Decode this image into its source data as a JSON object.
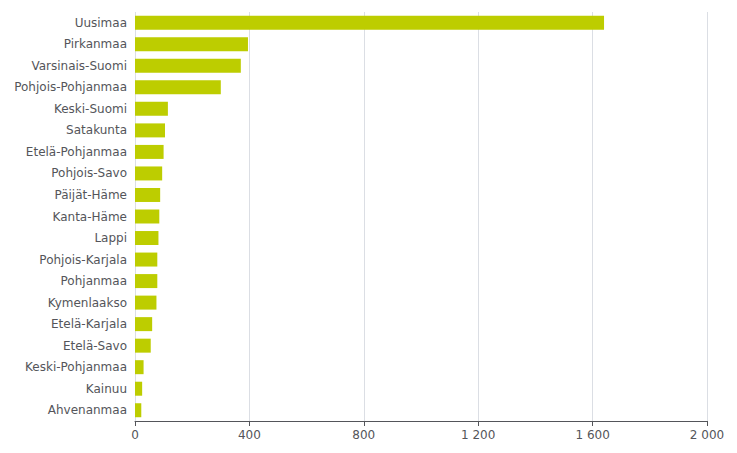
{
  "chart_data": {
    "type": "bar",
    "orientation": "horizontal",
    "categories": [
      "Ahvenanmaa",
      "Kainuu",
      "Keski-Pohjanmaa",
      "Etelä-Savo",
      "Etelä-Karjala",
      "Kymenlaakso",
      "Pohjanmaa",
      "Pohjois-Karjala",
      "Lappi",
      "Kanta-Häme",
      "Päijät-Häme",
      "Pohjois-Savo",
      "Etelä-Pohjanmaa",
      "Satakunta",
      "Keski-Suomi",
      "Pohjois-Pohjanmaa",
      "Varsinais-Suomi",
      "Pirkanmaa",
      "Uusimaa"
    ],
    "values": [
      22,
      25,
      30,
      55,
      60,
      75,
      78,
      78,
      82,
      85,
      88,
      95,
      100,
      105,
      115,
      300,
      370,
      395,
      1640
    ],
    "color": "#bdcd00",
    "xlim": [
      0,
      2000
    ],
    "xticks": [
      0,
      400,
      800,
      {
        "value": 1200,
        "label": "1 200"
      },
      {
        "value": 1600,
        "label": "1 600"
      },
      {
        "value": 2000,
        "label": "2 000"
      }
    ],
    "grid": true
  }
}
